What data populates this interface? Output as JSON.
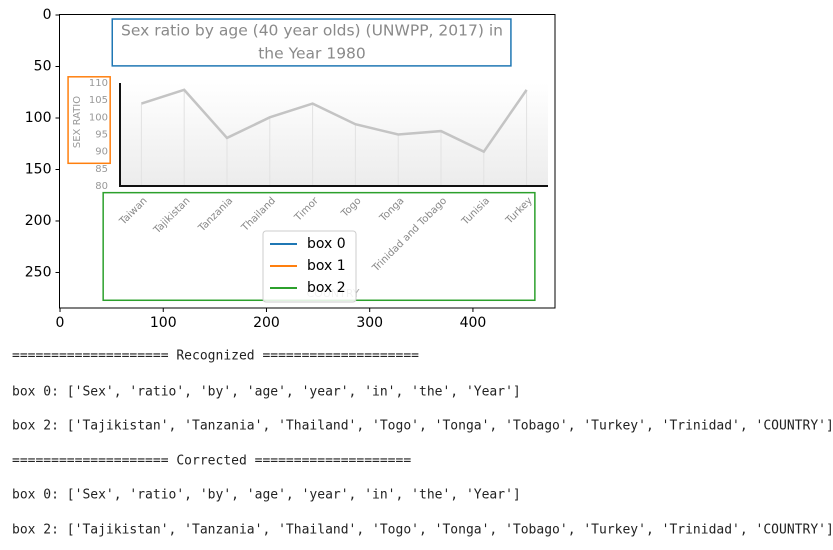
{
  "figure": {
    "xlim": [
      -0.5,
      479.5
    ],
    "ylim": [
      284.5,
      -0.5
    ],
    "xticks": [
      0,
      100,
      200,
      300,
      400
    ],
    "yticks": [
      0,
      50,
      100,
      150,
      200,
      250
    ],
    "image": {
      "title": [
        "Sex ratio by age (40 year olds) (UNWPP, 2017) in",
        "the Year 1980"
      ],
      "y_label": "SEX RATIO",
      "x_label": "COUNTRY",
      "categories": [
        "Taiwan",
        "Tajikistan",
        "Tanzania",
        "Thailand",
        "Timor",
        "Togo",
        "Tonga",
        "Trinidad and Tobago",
        "Tunisia",
        "Turkey"
      ],
      "values": [
        104,
        108,
        94,
        100,
        104,
        98,
        95,
        96,
        90,
        108
      ],
      "ylim": [
        80,
        110
      ],
      "yticks": [
        80,
        85,
        90,
        95,
        100,
        105,
        110
      ]
    },
    "boxes": [
      {
        "name": "box 0",
        "color": "#1f77b4",
        "x0": 50.6,
        "x1": 436.8,
        "y0": 3.9,
        "y1": 49.4
      },
      {
        "name": "box 1",
        "color": "#ff7f0e",
        "x0": 7.8,
        "x1": 48.6,
        "y0": 60,
        "y1": 144
      },
      {
        "name": "box 2",
        "color": "#2ca02c",
        "x0": 41.8,
        "x1": 460,
        "y0": 172.5,
        "y1": 277
      }
    ]
  },
  "output": {
    "lines": [
      "==================== Recognized ====================",
      "box 0: ['Sex', 'ratio', 'by', 'age', 'year', 'in', 'the', 'Year']",
      "box 2: ['Tajikistan', 'Tanzania', 'Thailand', 'Togo', 'Tonga', 'Tobago', 'Turkey', 'Trinidad', 'COUNTRY']",
      "==================== Corrected ====================",
      "box 0: ['Sex', 'ratio', 'by', 'age', 'year', 'in', 'the', 'Year']",
      "box 2: ['Tajikistan', 'Tanzania', 'Thailand', 'Togo', 'Tonga', 'Tobago', 'Turkey', 'Trinidad', 'COUNTRY']"
    ]
  }
}
